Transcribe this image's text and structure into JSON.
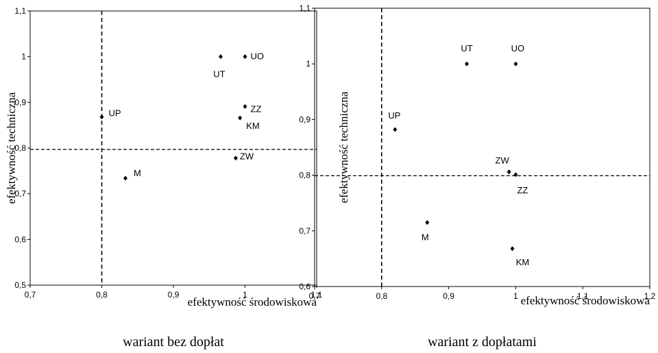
{
  "chart_data": [
    {
      "type": "scatter",
      "caption": "wariant bez dopłat",
      "xlabel": "efektywność środowiskowa",
      "ylabel": "efektywność techniczna",
      "xlim": [
        0.7,
        1.1
      ],
      "ylim": [
        0.5,
        1.1
      ],
      "xticks": [
        "0,7",
        "0,8",
        "0,9",
        "1",
        "1,1"
      ],
      "yticks": [
        "0,5",
        "0,6",
        "0,7",
        "0,8",
        "0,9",
        "1",
        "1,1"
      ],
      "ref_x": 0.8,
      "ref_y": 0.797,
      "points": [
        {
          "label": "UT",
          "x": 0.966,
          "y": 1.0
        },
        {
          "label": "UO",
          "x": 1.0,
          "y": 1.0
        },
        {
          "label": "UP",
          "x": 0.8,
          "y": 0.868
        },
        {
          "label": "ZZ",
          "x": 1.0,
          "y": 0.891
        },
        {
          "label": "KM",
          "x": 0.993,
          "y": 0.866
        },
        {
          "label": "ZW",
          "x": 0.987,
          "y": 0.778
        },
        {
          "label": "M",
          "x": 0.833,
          "y": 0.734
        }
      ]
    },
    {
      "type": "scatter",
      "caption": "wariant z dopłatami",
      "xlabel": "efektywność środowiskowa",
      "ylabel": "efektywność techniczna",
      "xlim": [
        0.7,
        1.2
      ],
      "ylim": [
        0.6,
        1.1
      ],
      "xticks": [
        "0,7",
        "0,8",
        "0,9",
        "1",
        "1,1",
        "1,2"
      ],
      "yticks": [
        "0,6",
        "0,7",
        "0,8",
        "0,9",
        "1",
        "1,1"
      ],
      "ref_x": 0.8,
      "ref_y": 0.799,
      "points": [
        {
          "label": "UT",
          "x": 0.927,
          "y": 1.0
        },
        {
          "label": "UO",
          "x": 1.0,
          "y": 1.0
        },
        {
          "label": "UP",
          "x": 0.82,
          "y": 0.882
        },
        {
          "label": "ZW",
          "x": 0.99,
          "y": 0.806
        },
        {
          "label": "ZZ",
          "x": 1.0,
          "y": 0.801
        },
        {
          "label": "M",
          "x": 0.868,
          "y": 0.715
        },
        {
          "label": "KM",
          "x": 0.995,
          "y": 0.668
        }
      ]
    }
  ]
}
